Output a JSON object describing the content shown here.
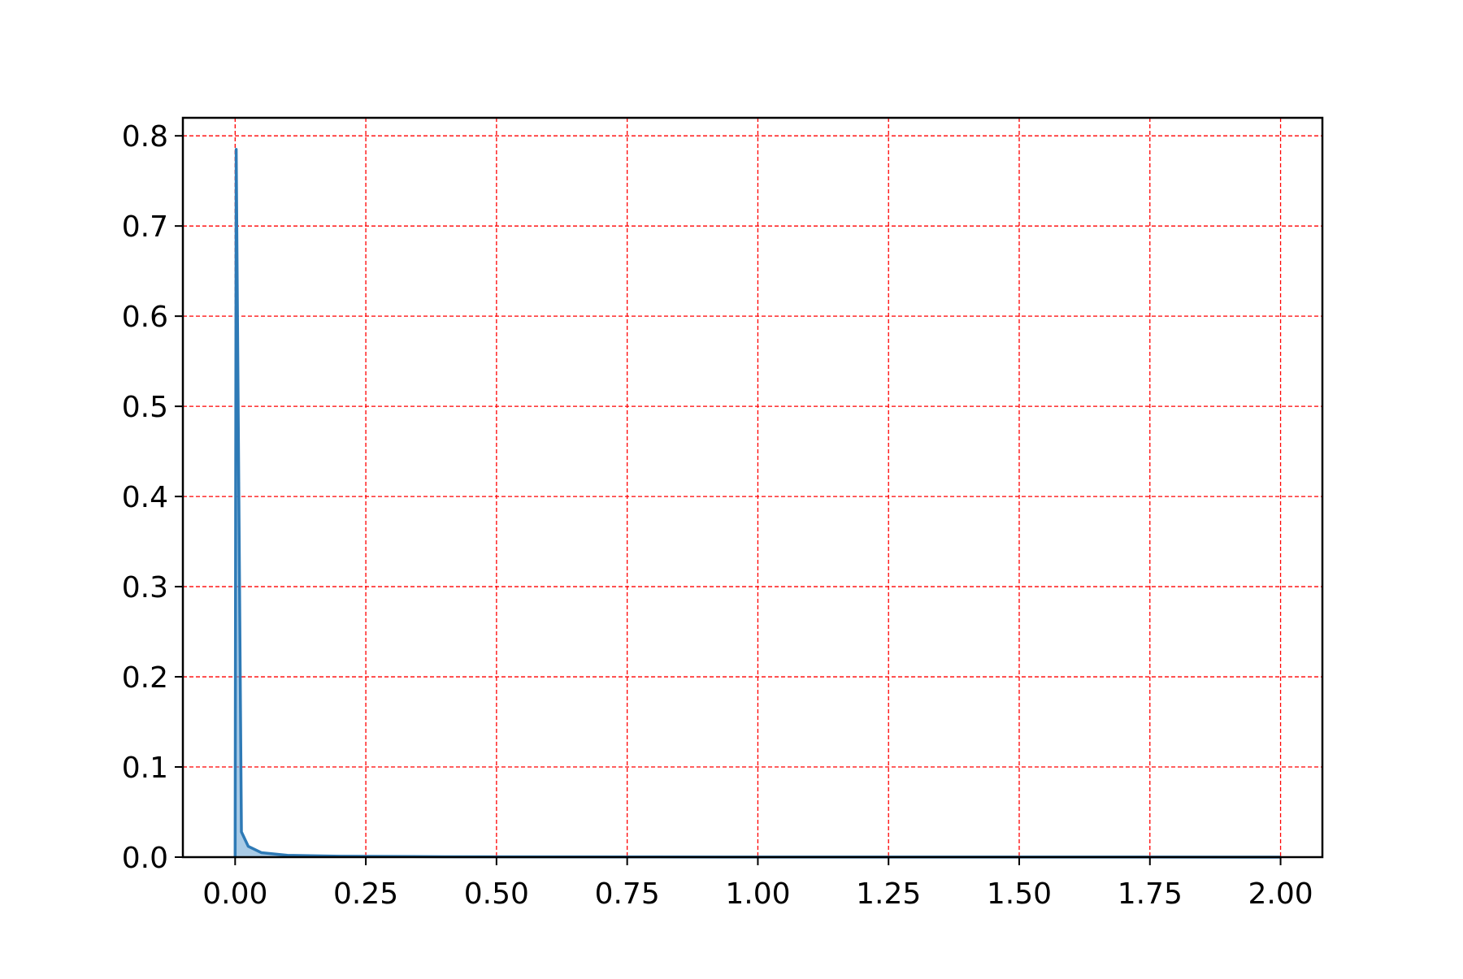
{
  "colors": {
    "line": "#2e7ab6",
    "fill": "#6fa8d6",
    "grid": "#ff0000",
    "axes": "#000000",
    "background": "#ffffff"
  },
  "chart_data": {
    "type": "area",
    "title": "",
    "xlabel": "",
    "ylabel": "",
    "xlim": [
      -0.1,
      2.08
    ],
    "ylim": [
      0.0,
      0.82
    ],
    "x_ticks": [
      0.0,
      0.25,
      0.5,
      0.75,
      1.0,
      1.25,
      1.5,
      1.75,
      2.0
    ],
    "x_tick_labels": [
      "0.00",
      "0.25",
      "0.50",
      "0.75",
      "1.00",
      "1.25",
      "1.50",
      "1.75",
      "2.00"
    ],
    "y_ticks": [
      0.0,
      0.1,
      0.2,
      0.3,
      0.4,
      0.5,
      0.6,
      0.7,
      0.8
    ],
    "y_tick_labels": [
      "0.0",
      "0.1",
      "0.2",
      "0.3",
      "0.4",
      "0.5",
      "0.6",
      "0.7",
      "0.8"
    ],
    "grid": true,
    "grid_style": "dashed",
    "legend": "none",
    "series": [
      {
        "x": [
          0.0,
          0.002,
          0.012,
          0.025,
          0.05,
          0.1,
          0.2,
          0.4,
          0.8,
          1.2,
          1.6,
          2.0
        ],
        "y": [
          0.0,
          0.785,
          0.028,
          0.012,
          0.005,
          0.002,
          0.001,
          0.0005,
          0.0002,
          0.0001,
          0.0001,
          0.0
        ]
      }
    ]
  }
}
